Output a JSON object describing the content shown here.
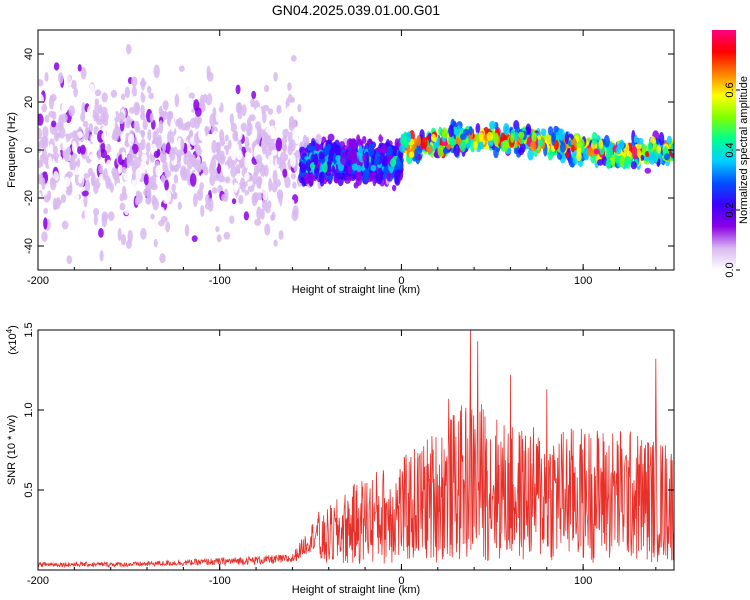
{
  "title": "GN04.2025.039.01.00.G01",
  "chart_data": [
    {
      "type": "heatmap",
      "xlabel": "Height of straight line (km)",
      "ylabel": "Frequency (Hz)",
      "xlim": [
        -200,
        150
      ],
      "ylim": [
        -50,
        50
      ],
      "xticks": [
        -200,
        -100,
        0,
        100
      ],
      "yticks": [
        -40,
        -20,
        0,
        20,
        40
      ],
      "colorbar": {
        "label": "Normalized spectral amplitude",
        "range": [
          0,
          0.8
        ],
        "ticks": [
          0.0,
          0.2,
          0.4,
          0.6
        ],
        "colors": [
          "#ffffff",
          "#d8b8f0",
          "#8a00e6",
          "#3c00ff",
          "#0050ff",
          "#00d0ff",
          "#00ff90",
          "#80ff00",
          "#ffff00",
          "#ff8000",
          "#ff0000",
          "#ff0080"
        ]
      },
      "bands": [
        {
          "x_start": -200,
          "x_end": -55,
          "center_freq": -2,
          "spread_hz": 50,
          "level": 0.1
        },
        {
          "x_start": -55,
          "x_end": 0,
          "center_freq": -5,
          "spread_hz": 12,
          "level": 0.25
        },
        {
          "x_start": 0,
          "x_end": 150,
          "center_freq": 2,
          "spread_hz": 8,
          "level": 0.45
        }
      ]
    },
    {
      "type": "line",
      "xlabel": "Height of straight line (km)",
      "ylabel": "SNR (10 * v/v)",
      "y_multiplier_label": "(x10",
      "y_multiplier_exp": "4",
      "xlim": [
        -200,
        150
      ],
      "ylim": [
        0,
        1.5
      ],
      "xticks": [
        -200,
        -100,
        0,
        100
      ],
      "yticks": [
        0.5,
        1.0,
        1.5
      ],
      "color": "#e8302a",
      "x": [
        -200,
        -150,
        -100,
        -60,
        -45,
        -40,
        -20,
        0,
        20,
        40,
        60,
        80,
        100,
        120,
        140,
        150
      ],
      "y": [
        0.02,
        0.02,
        0.03,
        0.04,
        0.15,
        0.2,
        0.3,
        0.35,
        0.45,
        0.55,
        0.45,
        0.45,
        0.45,
        0.45,
        0.42,
        0.4
      ],
      "peaks": [
        {
          "x": 38,
          "y": 1.5
        },
        {
          "x": 42,
          "y": 1.43
        },
        {
          "x": 140,
          "y": 1.32
        },
        {
          "x": 60,
          "y": 1.22
        },
        {
          "x": 80,
          "y": 1.13
        },
        {
          "x": 26,
          "y": 1.07
        }
      ]
    }
  ]
}
